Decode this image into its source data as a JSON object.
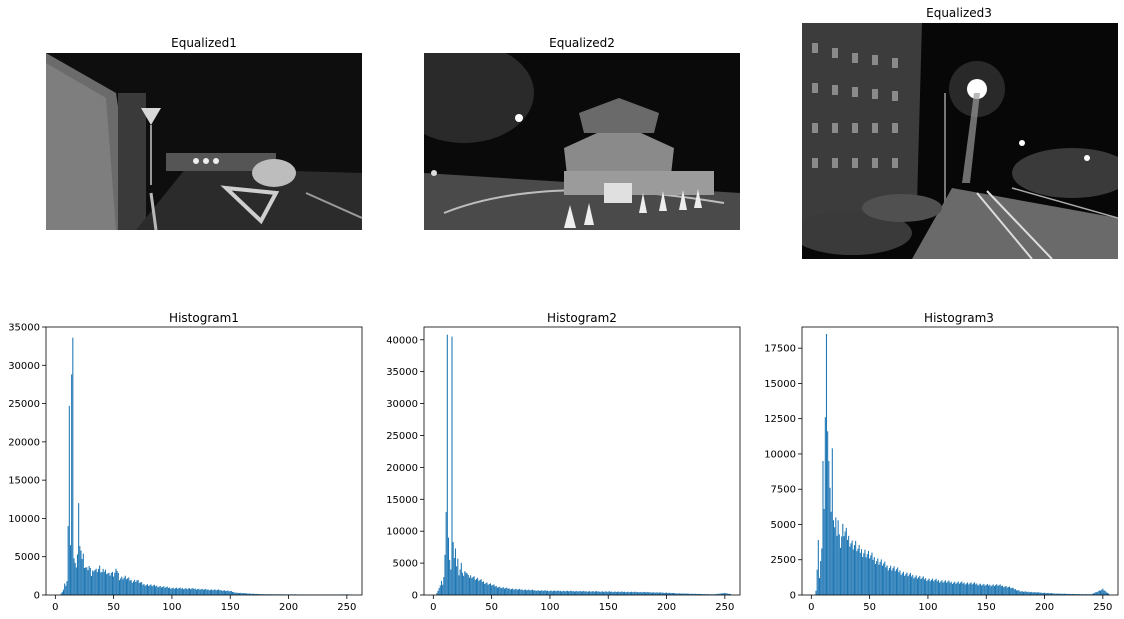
{
  "images": [
    {
      "title": "Equalized1",
      "icon": "night-street-car-photo"
    },
    {
      "title": "Equalized2",
      "icon": "night-roadworks-cones-photo"
    },
    {
      "title": "Equalized3",
      "icon": "night-street-lamp-building-photo"
    }
  ],
  "colors": {
    "bar": "#1f77b4",
    "axis": "#000000",
    "background": "#ffffff"
  },
  "chart_data": [
    {
      "type": "bar",
      "title": "Histogram1",
      "xlabel": "",
      "ylabel": "",
      "xlim": [
        -8,
        263
      ],
      "ylim": [
        0,
        35000
      ],
      "xticks": [
        0,
        50,
        100,
        150,
        200,
        250
      ],
      "yticks": [
        0,
        5000,
        10000,
        15000,
        20000,
        25000,
        30000,
        35000
      ],
      "grid": false,
      "peaks": [
        [
          5,
          200
        ],
        [
          7,
          700
        ],
        [
          8,
          1500
        ],
        [
          9,
          1200
        ],
        [
          10,
          1800
        ],
        [
          11,
          9000
        ],
        [
          12,
          24700
        ],
        [
          13,
          6500
        ],
        [
          14,
          28800
        ],
        [
          15,
          33600
        ],
        [
          16,
          4800
        ],
        [
          17,
          4200
        ],
        [
          18,
          3600
        ],
        [
          19,
          5300
        ],
        [
          20,
          12000
        ],
        [
          21,
          6400
        ],
        [
          22,
          5800
        ],
        [
          23,
          4700
        ],
        [
          24,
          5400
        ],
        [
          25,
          3900
        ],
        [
          27,
          3300
        ],
        [
          29,
          3700
        ],
        [
          31,
          2600
        ],
        [
          33,
          3500
        ],
        [
          35,
          3200
        ],
        [
          38,
          3500
        ],
        [
          40,
          2900
        ],
        [
          42,
          3200
        ],
        [
          44,
          3100
        ],
        [
          46,
          2700
        ],
        [
          48,
          2900
        ],
        [
          50,
          2600
        ],
        [
          53,
          3300
        ],
        [
          55,
          2200
        ],
        [
          60,
          2300
        ],
        [
          66,
          1800
        ],
        [
          70,
          1900
        ],
        [
          75,
          1400
        ],
        [
          80,
          1300
        ],
        [
          90,
          1100
        ],
        [
          100,
          900
        ],
        [
          110,
          850
        ],
        [
          120,
          800
        ],
        [
          130,
          700
        ],
        [
          140,
          650
        ],
        [
          150,
          500
        ],
        [
          155,
          300
        ],
        [
          160,
          250
        ],
        [
          170,
          150
        ],
        [
          180,
          100
        ],
        [
          200,
          80
        ],
        [
          220,
          60
        ],
        [
          240,
          60
        ],
        [
          250,
          80
        ],
        [
          255,
          30
        ]
      ]
    },
    {
      "type": "bar",
      "title": "Histogram2",
      "xlabel": "",
      "ylabel": "",
      "xlim": [
        -8,
        263
      ],
      "ylim": [
        0,
        42000
      ],
      "xticks": [
        0,
        50,
        100,
        150,
        200,
        250
      ],
      "yticks": [
        0,
        5000,
        10000,
        15000,
        20000,
        25000,
        30000,
        35000,
        40000
      ],
      "grid": false,
      "peaks": [
        [
          3,
          300
        ],
        [
          5,
          1000
        ],
        [
          7,
          2200
        ],
        [
          8,
          1600
        ],
        [
          9,
          2800
        ],
        [
          10,
          6300
        ],
        [
          11,
          13000
        ],
        [
          12,
          40800
        ],
        [
          13,
          9000
        ],
        [
          14,
          5500
        ],
        [
          15,
          4000
        ],
        [
          16,
          40500
        ],
        [
          17,
          8300
        ],
        [
          18,
          5800
        ],
        [
          19,
          7300
        ],
        [
          20,
          4500
        ],
        [
          21,
          5700
        ],
        [
          22,
          3500
        ],
        [
          24,
          4700
        ],
        [
          26,
          3000
        ],
        [
          28,
          3800
        ],
        [
          30,
          2800
        ],
        [
          33,
          3000
        ],
        [
          36,
          2600
        ],
        [
          40,
          2300
        ],
        [
          45,
          1900
        ],
        [
          50,
          1600
        ],
        [
          55,
          1300
        ],
        [
          60,
          1100
        ],
        [
          70,
          900
        ],
        [
          80,
          800
        ],
        [
          90,
          700
        ],
        [
          100,
          650
        ],
        [
          120,
          600
        ],
        [
          140,
          550
        ],
        [
          160,
          500
        ],
        [
          180,
          450
        ],
        [
          200,
          350
        ],
        [
          210,
          250
        ],
        [
          220,
          200
        ],
        [
          240,
          100
        ],
        [
          250,
          300
        ],
        [
          255,
          150
        ]
      ]
    },
    {
      "type": "bar",
      "title": "Histogram3",
      "xlabel": "",
      "ylabel": "",
      "xlim": [
        -8,
        263
      ],
      "ylim": [
        0,
        19000
      ],
      "xticks": [
        0,
        50,
        100,
        150,
        200,
        250
      ],
      "yticks": [
        0,
        2500,
        5000,
        7500,
        10000,
        12500,
        15000,
        17500
      ],
      "grid": false,
      "peaks": [
        [
          4,
          300
        ],
        [
          5,
          1800
        ],
        [
          6,
          3900
        ],
        [
          7,
          1200
        ],
        [
          8,
          2400
        ],
        [
          9,
          3300
        ],
        [
          10,
          9500
        ],
        [
          11,
          6100
        ],
        [
          12,
          12600
        ],
        [
          13,
          18500
        ],
        [
          14,
          11600
        ],
        [
          15,
          9500
        ],
        [
          16,
          7600
        ],
        [
          17,
          5900
        ],
        [
          18,
          10400
        ],
        [
          19,
          5300
        ],
        [
          20,
          4800
        ],
        [
          21,
          5500
        ],
        [
          22,
          4200
        ],
        [
          23,
          5300
        ],
        [
          24,
          4300
        ],
        [
          25,
          3700
        ],
        [
          27,
          4600
        ],
        [
          29,
          4400
        ],
        [
          31,
          4100
        ],
        [
          33,
          3900
        ],
        [
          35,
          3600
        ],
        [
          38,
          3500
        ],
        [
          40,
          3200
        ],
        [
          43,
          3100
        ],
        [
          46,
          3000
        ],
        [
          50,
          2800
        ],
        [
          55,
          2500
        ],
        [
          60,
          2300
        ],
        [
          65,
          2000
        ],
        [
          70,
          1900
        ],
        [
          75,
          1700
        ],
        [
          80,
          1500
        ],
        [
          90,
          1300
        ],
        [
          100,
          1100
        ],
        [
          110,
          1000
        ],
        [
          120,
          900
        ],
        [
          130,
          850
        ],
        [
          140,
          800
        ],
        [
          150,
          700
        ],
        [
          160,
          700
        ],
        [
          170,
          550
        ],
        [
          175,
          400
        ],
        [
          180,
          250
        ],
        [
          190,
          200
        ],
        [
          200,
          150
        ],
        [
          210,
          100
        ],
        [
          220,
          80
        ],
        [
          230,
          60
        ],
        [
          240,
          50
        ],
        [
          250,
          400
        ],
        [
          255,
          100
        ]
      ]
    }
  ]
}
